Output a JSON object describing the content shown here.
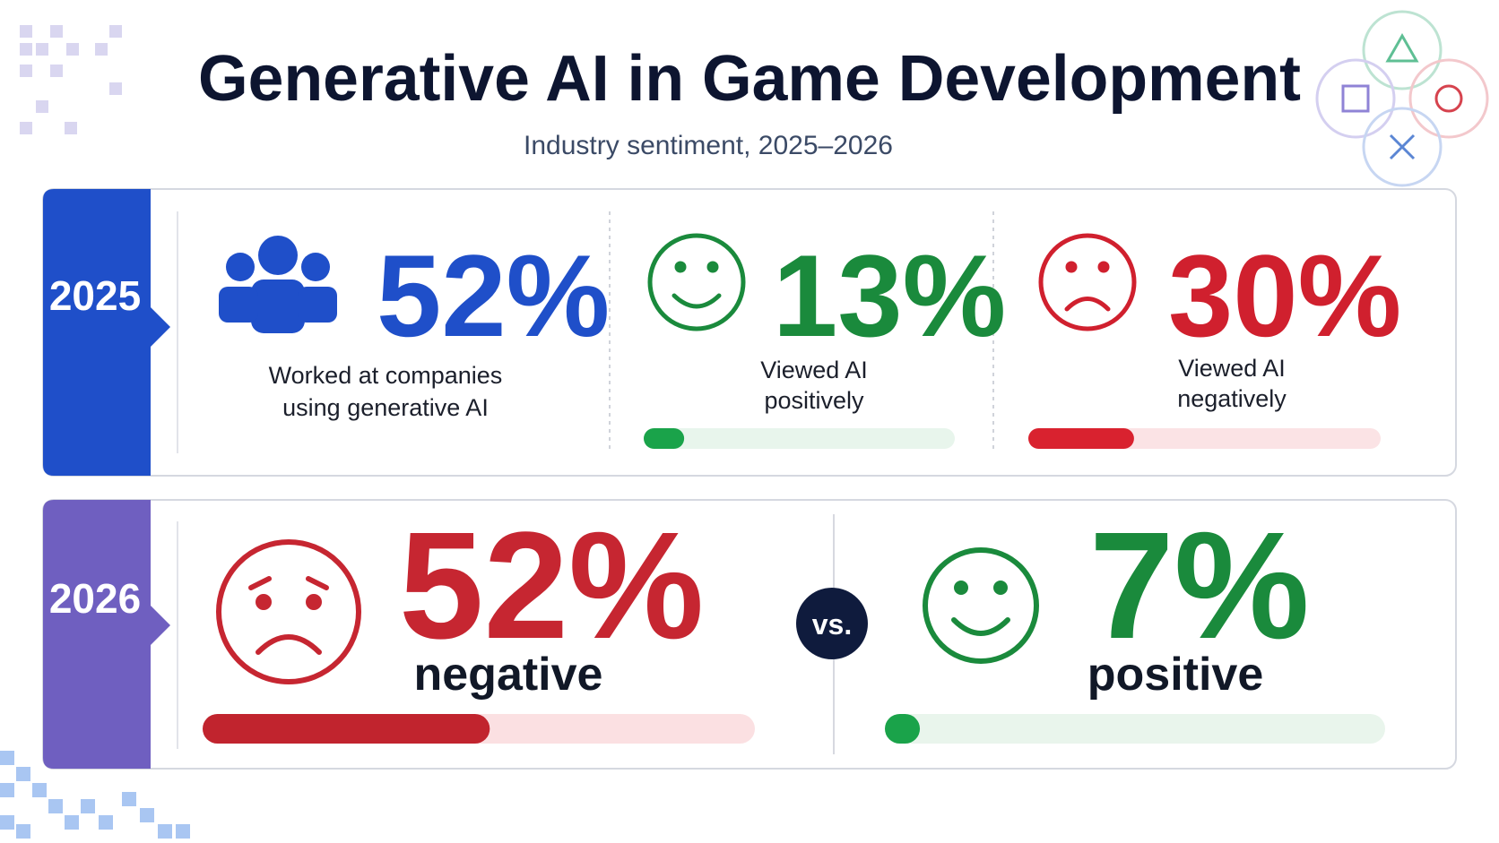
{
  "header": {
    "title": "Generative AI in Game Development",
    "subtitle": "Industry sentiment, 2025–2026"
  },
  "xlim": [
    0,
    100
  ],
  "panels": [
    {
      "year": "2025",
      "stats": [
        {
          "value": 52,
          "label": "52%",
          "caption": [
            "Worked at companies",
            "using generative AI"
          ]
        },
        {
          "value": 13,
          "label": "13%",
          "caption": [
            "Viewed AI",
            "positively"
          ]
        },
        {
          "value": 30,
          "label": "30%",
          "caption": [
            "Viewed AI",
            "negatively"
          ]
        }
      ]
    },
    {
      "year": "2026",
      "separator": "vs.",
      "stats": [
        {
          "value": 52,
          "label": "52%",
          "caption": [
            "negative"
          ]
        },
        {
          "value": 7,
          "label": "7%",
          "caption": [
            "positive"
          ]
        }
      ]
    }
  ]
}
